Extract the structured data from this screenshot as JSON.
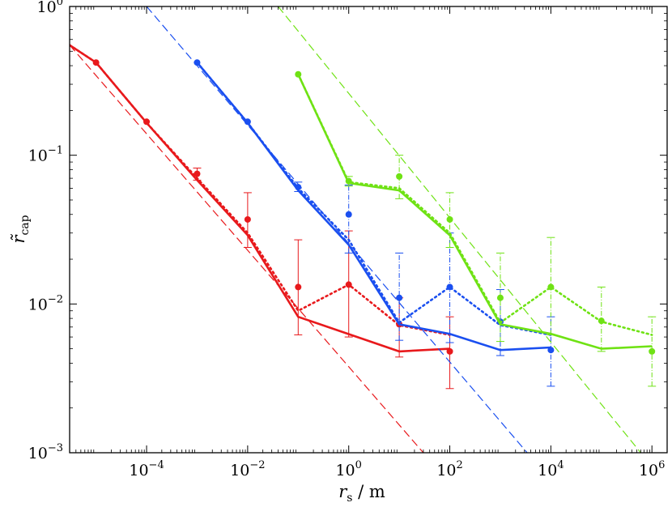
{
  "chart_data": {
    "type": "scatter",
    "xlabel": "r_s / m",
    "ylabel": "r̃_cap",
    "xscale": "log",
    "yscale": "log",
    "xlim": [
      3e-06,
      2000000.0
    ],
    "ylim": [
      0.001,
      1
    ],
    "grid": false,
    "legend": "none",
    "x_ticks": [
      {
        "value": 0.0001,
        "mantissa": "10",
        "exp": "−4"
      },
      {
        "value": 0.01,
        "mantissa": "10",
        "exp": "−2"
      },
      {
        "value": 1,
        "mantissa": "10",
        "exp": "0"
      },
      {
        "value": 100,
        "mantissa": "10",
        "exp": "2"
      },
      {
        "value": 10000,
        "mantissa": "10",
        "exp": "4"
      },
      {
        "value": 1000000,
        "mantissa": "10",
        "exp": "6"
      }
    ],
    "y_ticks": [
      {
        "value": 0.001,
        "mantissa": "10",
        "exp": "−3"
      },
      {
        "value": 0.01,
        "mantissa": "10",
        "exp": "−2"
      },
      {
        "value": 0.1,
        "mantissa": "10",
        "exp": "−1"
      },
      {
        "value": 1,
        "mantissa": "10",
        "exp": "0"
      }
    ],
    "series": [
      {
        "color": "#e8191c",
        "points": [
          {
            "x": 1e-05,
            "y": 0.42,
            "lo": null,
            "hi": null
          },
          {
            "x": 0.0001,
            "y": 0.168,
            "lo": null,
            "hi": null
          },
          {
            "x": 0.001,
            "y": 0.075,
            "lo": 0.068,
            "hi": 0.082
          },
          {
            "x": 0.01,
            "y": 0.037,
            "lo": 0.024,
            "hi": 0.056
          },
          {
            "x": 0.1,
            "y": 0.013,
            "lo": 0.0062,
            "hi": 0.027
          },
          {
            "x": 1,
            "y": 0.0135,
            "lo": 0.006,
            "hi": 0.031
          },
          {
            "x": 10,
            "y": 0.0073,
            "lo": 0.0044,
            "hi": 0.011
          },
          {
            "x": 100,
            "y": 0.0048,
            "lo": 0.0027,
            "hi": 0.0082
          }
        ],
        "solid": [
          [
            3e-06,
            0.55
          ],
          [
            1e-05,
            0.42
          ],
          [
            0.0001,
            0.165
          ],
          [
            0.001,
            0.068
          ],
          [
            0.01,
            0.029
          ],
          [
            0.1,
            0.0082
          ],
          [
            10,
            0.0048
          ],
          [
            100,
            0.005
          ]
        ],
        "dotted": [
          [
            3e-06,
            0.55
          ],
          [
            1e-05,
            0.42
          ],
          [
            0.0001,
            0.165
          ],
          [
            0.001,
            0.07
          ],
          [
            0.01,
            0.03
          ],
          [
            0.1,
            0.009
          ],
          [
            1,
            0.0135
          ],
          [
            10,
            0.0072
          ],
          [
            100,
            0.0062
          ]
        ],
        "dashed": [
          [
            3e-06,
            0.55
          ],
          [
            30,
            0.001
          ]
        ]
      },
      {
        "color": "#1a4ff0",
        "points": [
          {
            "x": 0.001,
            "y": 0.42,
            "lo": null,
            "hi": null
          },
          {
            "x": 0.01,
            "y": 0.168,
            "lo": null,
            "hi": null
          },
          {
            "x": 0.1,
            "y": 0.061,
            "lo": 0.057,
            "hi": 0.066
          },
          {
            "x": 1,
            "y": 0.04,
            "lo": 0.022,
            "hi": 0.063
          },
          {
            "x": 10,
            "y": 0.011,
            "lo": 0.0057,
            "hi": 0.022
          },
          {
            "x": 100,
            "y": 0.013,
            "lo": 0.0055,
            "hi": 0.03
          },
          {
            "x": 1000,
            "y": 0.0076,
            "lo": 0.0045,
            "hi": 0.0125
          },
          {
            "x": 10000,
            "y": 0.0049,
            "lo": 0.0028,
            "hi": 0.0082
          }
        ],
        "solid": [
          [
            0.001,
            0.42
          ],
          [
            0.01,
            0.165
          ],
          [
            0.1,
            0.058
          ],
          [
            1,
            0.025
          ],
          [
            10,
            0.0073
          ],
          [
            100,
            0.0063
          ],
          [
            1000,
            0.0049
          ],
          [
            10000,
            0.0051
          ]
        ],
        "dotted": [
          [
            0.001,
            0.42
          ],
          [
            0.01,
            0.165
          ],
          [
            0.1,
            0.06
          ],
          [
            1,
            0.027
          ],
          [
            10,
            0.0075
          ],
          [
            100,
            0.013
          ],
          [
            1000,
            0.0072
          ],
          [
            10000,
            0.0062
          ]
        ],
        "dashed": [
          [
            0.0001,
            1
          ],
          [
            3400,
            0.001
          ]
        ]
      },
      {
        "color": "#6fe214",
        "points": [
          {
            "x": 0.1,
            "y": 0.35,
            "lo": null,
            "hi": null
          },
          {
            "x": 1,
            "y": 0.067,
            "lo": 0.062,
            "hi": 0.072
          },
          {
            "x": 10,
            "y": 0.072,
            "lo": 0.051,
            "hi": 0.1
          },
          {
            "x": 100,
            "y": 0.037,
            "lo": 0.024,
            "hi": 0.056
          },
          {
            "x": 1000,
            "y": 0.011,
            "lo": 0.0056,
            "hi": 0.022
          },
          {
            "x": 10000,
            "y": 0.013,
            "lo": 0.0062,
            "hi": 0.028
          },
          {
            "x": 100000,
            "y": 0.0077,
            "lo": 0.0048,
            "hi": 0.013
          },
          {
            "x": 1000000,
            "y": 0.0048,
            "lo": 0.0028,
            "hi": 0.0082
          }
        ],
        "solid": [
          [
            0.1,
            0.35
          ],
          [
            1,
            0.065
          ],
          [
            10,
            0.058
          ],
          [
            100,
            0.029
          ],
          [
            1000,
            0.0073
          ],
          [
            10000,
            0.0063
          ],
          [
            100000,
            0.005
          ],
          [
            1000000,
            0.0052
          ]
        ],
        "dotted": [
          [
            0.1,
            0.35
          ],
          [
            1,
            0.066
          ],
          [
            10,
            0.06
          ],
          [
            100,
            0.03
          ],
          [
            1000,
            0.0075
          ],
          [
            10000,
            0.013
          ],
          [
            100000,
            0.0076
          ],
          [
            1000000,
            0.0062
          ]
        ],
        "dashed": [
          [
            0.04,
            1
          ],
          [
            600000,
            0.001
          ]
        ]
      }
    ]
  }
}
